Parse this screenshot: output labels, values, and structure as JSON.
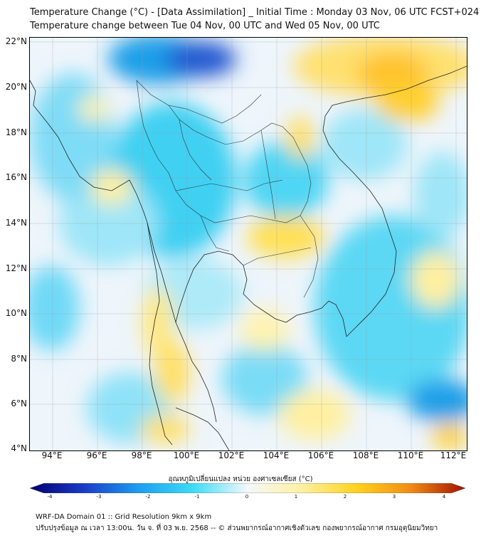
{
  "title_line1": "Temperature Change (°C) - [Data Assimilation] _ Initial Time : Monday 03 Nov, 06 UTC FCST+024",
  "title_line2": "Temperature change between Tue 04 Nov, 00 UTC and Wed 05 Nov, 00 UTC",
  "lat_labels": [
    "22°N",
    "20°N",
    "18°N",
    "16°N",
    "14°N",
    "12°N",
    "10°N",
    "8°N",
    "6°N",
    "4°N"
  ],
  "lon_labels": [
    "94°E",
    "96°E",
    "98°E",
    "100°E",
    "102°E",
    "104°E",
    "106°E",
    "108°E",
    "110°E",
    "112°E"
  ],
  "colorbar": {
    "title": "อุณหภูมิเปลี่ยนแปลง หน่วย องศาเซลเซียส (°C)",
    "ticks": [
      "-4",
      "-3",
      "-2",
      "-1",
      "0",
      "1",
      "2",
      "3",
      "4"
    ],
    "colors": [
      "#00006e",
      "#1a3cc8",
      "#1e9ef0",
      "#3ddcf5",
      "#f4f8fb",
      "#fff0a0",
      "#ffd21e",
      "#f08c14",
      "#a01000"
    ]
  },
  "footer_line1": "WRF-DA Domain 01 :: Grid Resolution 9km x 9km",
  "footer_line2": "ปรับปรุงข้อมูล ณ เวลา 13:00น. วัน จ. ที่ 03 พ.ย. 2568 -- © ส่วนพยากรณ์อากาศเชิงตัวเลข กองพยากรณ์อากาศ กรมอุตุนิยมวิทยา"
}
